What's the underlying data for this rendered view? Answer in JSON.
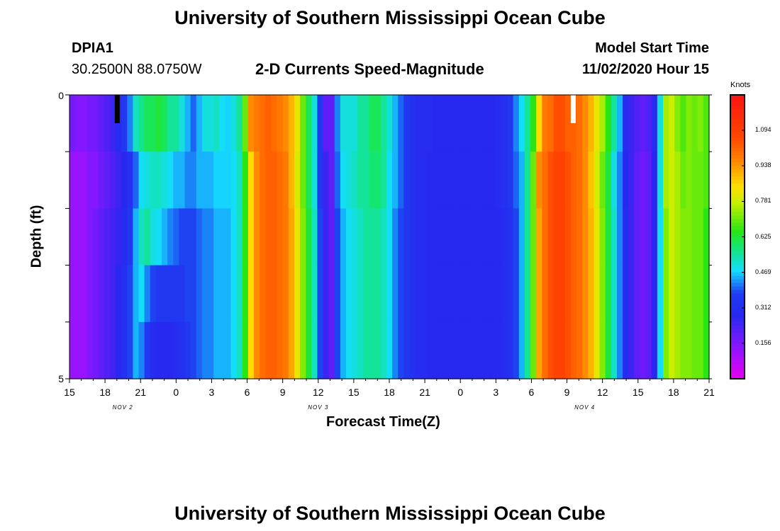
{
  "header": {
    "title": "University of Southern Mississippi Ocean Cube",
    "station_id": "DPIA1",
    "coords": "30.2500N 88.0750W",
    "subtitle": "2-D Currents Speed-Magnitude",
    "model_label": "Model Start Time",
    "model_time": "11/02/2020 Hour 15"
  },
  "footer": {
    "title": "University of Southern Mississippi Ocean Cube"
  },
  "chart_data": {
    "type": "heatmap",
    "title": "2-D Currents Speed-Magnitude",
    "xlabel": "Forecast Time(Z)",
    "ylabel": "Depth (ft)",
    "x_ticks": [
      "15",
      "18",
      "21",
      "0",
      "3",
      "6",
      "9",
      "12",
      "15",
      "18",
      "21",
      "0",
      "3",
      "6",
      "9",
      "12",
      "15",
      "18",
      "21"
    ],
    "x_tick_hours": [
      0,
      3,
      6,
      9,
      12,
      15,
      18,
      21,
      24,
      27,
      30,
      33,
      36,
      39,
      42,
      45,
      48,
      51,
      54
    ],
    "day_labels": [
      {
        "label": "NOV 2",
        "hour": 4.5
      },
      {
        "label": "NOV 3",
        "hour": 21
      },
      {
        "label": "NOV 4",
        "hour": 43.5
      }
    ],
    "y_ticks": [
      "0",
      "5"
    ],
    "ylim": [
      0,
      5
    ],
    "xlim_hours": [
      0,
      54
    ],
    "depth_levels": 5,
    "hours_per_column": 1,
    "values": [
      [
        0.17,
        0.15,
        0.15,
        0.17,
        0.17,
        0.2,
        0.22,
        0.25,
        0.3,
        0.35,
        0.42,
        0.52,
        0.56,
        0.6,
        0.6,
        0.62,
        0.6,
        0.55,
        0.55,
        0.5,
        0.45,
        0.4,
        0.45,
        0.5,
        0.5,
        0.52,
        0.48,
        0.47,
        0.5,
        0.55,
        0.7,
        0.95,
        0.98,
        1.0,
        1.02,
        1.0,
        0.98,
        0.95,
        0.9,
        0.82,
        0.7,
        0.6,
        0.5,
        0.35,
        0.2,
        0.2,
        0.42,
        0.5,
        0.5,
        0.5,
        0.55,
        0.55,
        0.6,
        0.6,
        0.55,
        0.5,
        0.45,
        0.4,
        0.35,
        0.32,
        0.3,
        0.3,
        0.3,
        0.28,
        0.28,
        0.28,
        0.28,
        0.28,
        0.28,
        0.28,
        0.28,
        0.28,
        0.28,
        0.28,
        0.3,
        0.32,
        0.35,
        0.42,
        0.48,
        0.55,
        0.65,
        0.85,
        0.98,
        1.0,
        1.05,
        1.05,
        1.02,
        1.02,
        1.0,
        0.95,
        0.9,
        0.82,
        0.75,
        0.65,
        0.55,
        0.45,
        0.3,
        0.25,
        0.22,
        0.2,
        0.22,
        0.3,
        0.5,
        0.75,
        0.78,
        0.72,
        0.68,
        0.72,
        0.7,
        0.72,
        0.68
      ],
      [
        0.12,
        0.12,
        0.12,
        0.15,
        0.15,
        0.18,
        0.2,
        0.22,
        0.25,
        0.28,
        0.32,
        0.4,
        0.48,
        0.5,
        0.52,
        0.52,
        0.5,
        0.48,
        0.45,
        0.45,
        0.42,
        0.42,
        0.45,
        0.45,
        0.45,
        0.47,
        0.47,
        0.47,
        0.48,
        0.52,
        0.65,
        0.85,
        0.95,
        1.0,
        1.02,
        1.02,
        1.0,
        0.98,
        0.9,
        0.8,
        0.7,
        0.6,
        0.5,
        0.35,
        0.25,
        0.2,
        0.4,
        0.48,
        0.5,
        0.52,
        0.55,
        0.55,
        0.58,
        0.58,
        0.55,
        0.48,
        0.45,
        0.4,
        0.35,
        0.32,
        0.3,
        0.3,
        0.28,
        0.28,
        0.28,
        0.28,
        0.28,
        0.28,
        0.28,
        0.28,
        0.28,
        0.28,
        0.28,
        0.28,
        0.3,
        0.32,
        0.35,
        0.4,
        0.45,
        0.55,
        0.7,
        0.95,
        1.0,
        1.05,
        1.08,
        1.08,
        1.05,
        1.02,
        1.0,
        0.95,
        0.88,
        0.8,
        0.7,
        0.62,
        0.5,
        0.42,
        0.28,
        0.25,
        0.2,
        0.18,
        0.2,
        0.28,
        0.5,
        0.75,
        0.78,
        0.75,
        0.7,
        0.72,
        0.7,
        0.7,
        0.68
      ],
      [
        0.12,
        0.12,
        0.12,
        0.15,
        0.17,
        0.2,
        0.22,
        0.24,
        0.26,
        0.3,
        0.35,
        0.45,
        0.52,
        0.55,
        0.5,
        0.48,
        0.45,
        0.42,
        0.4,
        0.38,
        0.38,
        0.38,
        0.4,
        0.42,
        0.42,
        0.45,
        0.45,
        0.45,
        0.48,
        0.52,
        0.65,
        0.85,
        0.95,
        1.0,
        1.02,
        1.02,
        1.0,
        0.98,
        0.92,
        0.82,
        0.72,
        0.62,
        0.52,
        0.38,
        0.25,
        0.2,
        0.38,
        0.45,
        0.48,
        0.5,
        0.52,
        0.55,
        0.55,
        0.55,
        0.52,
        0.48,
        0.42,
        0.38,
        0.35,
        0.32,
        0.3,
        0.3,
        0.28,
        0.28,
        0.28,
        0.28,
        0.28,
        0.28,
        0.28,
        0.28,
        0.28,
        0.28,
        0.28,
        0.28,
        0.28,
        0.3,
        0.32,
        0.38,
        0.45,
        0.55,
        0.7,
        0.92,
        1.0,
        1.05,
        1.08,
        1.08,
        1.05,
        1.02,
        1.0,
        0.95,
        0.9,
        0.82,
        0.72,
        0.62,
        0.52,
        0.42,
        0.3,
        0.25,
        0.2,
        0.18,
        0.2,
        0.28,
        0.48,
        0.72,
        0.78,
        0.75,
        0.72,
        0.72,
        0.7,
        0.7,
        0.65
      ],
      [
        0.12,
        0.12,
        0.12,
        0.15,
        0.17,
        0.2,
        0.22,
        0.24,
        0.28,
        0.32,
        0.38,
        0.45,
        0.48,
        0.42,
        0.38,
        0.36,
        0.35,
        0.35,
        0.35,
        0.35,
        0.38,
        0.38,
        0.4,
        0.42,
        0.42,
        0.45,
        0.45,
        0.45,
        0.48,
        0.52,
        0.65,
        0.85,
        0.95,
        1.0,
        1.02,
        1.02,
        1.0,
        0.98,
        0.92,
        0.82,
        0.72,
        0.62,
        0.52,
        0.38,
        0.25,
        0.2,
        0.38,
        0.45,
        0.48,
        0.5,
        0.52,
        0.55,
        0.55,
        0.55,
        0.52,
        0.48,
        0.42,
        0.38,
        0.35,
        0.32,
        0.3,
        0.3,
        0.28,
        0.28,
        0.28,
        0.28,
        0.28,
        0.28,
        0.28,
        0.28,
        0.28,
        0.28,
        0.28,
        0.28,
        0.28,
        0.3,
        0.32,
        0.38,
        0.45,
        0.55,
        0.7,
        0.92,
        1.0,
        1.05,
        1.08,
        1.08,
        1.05,
        1.02,
        1.0,
        0.95,
        0.9,
        0.82,
        0.72,
        0.62,
        0.52,
        0.42,
        0.3,
        0.25,
        0.2,
        0.18,
        0.2,
        0.28,
        0.48,
        0.72,
        0.78,
        0.75,
        0.72,
        0.72,
        0.7,
        0.7,
        0.65
      ],
      [
        0.12,
        0.12,
        0.12,
        0.15,
        0.17,
        0.2,
        0.22,
        0.24,
        0.28,
        0.32,
        0.38,
        0.45,
        0.42,
        0.35,
        0.3,
        0.28,
        0.28,
        0.28,
        0.3,
        0.32,
        0.35,
        0.38,
        0.4,
        0.42,
        0.42,
        0.45,
        0.45,
        0.45,
        0.48,
        0.52,
        0.65,
        0.85,
        0.95,
        1.0,
        1.02,
        1.02,
        1.0,
        0.98,
        0.92,
        0.82,
        0.72,
        0.62,
        0.52,
        0.38,
        0.25,
        0.2,
        0.38,
        0.45,
        0.48,
        0.5,
        0.52,
        0.55,
        0.55,
        0.55,
        0.52,
        0.48,
        0.42,
        0.38,
        0.35,
        0.32,
        0.3,
        0.3,
        0.28,
        0.28,
        0.28,
        0.28,
        0.28,
        0.28,
        0.28,
        0.28,
        0.28,
        0.28,
        0.28,
        0.28,
        0.28,
        0.3,
        0.32,
        0.38,
        0.45,
        0.55,
        0.7,
        0.92,
        1.0,
        1.05,
        1.08,
        1.08,
        1.05,
        1.02,
        1.0,
        0.95,
        0.9,
        0.82,
        0.72,
        0.62,
        0.52,
        0.42,
        0.3,
        0.25,
        0.2,
        0.18,
        0.2,
        0.28,
        0.48,
        0.72,
        0.78,
        0.75,
        0.72,
        0.72,
        0.7,
        0.7,
        0.65
      ]
    ],
    "markers": [
      {
        "hour": 4.0,
        "color": "#000000"
      },
      {
        "hour": 42.5,
        "color": "#ffffff"
      }
    ],
    "colorbar": {
      "label": "Knots",
      "min": 0.0,
      "max": 1.25,
      "ticks": [
        "1.094",
        "0.938",
        "0.781",
        "0.625",
        "0.469",
        "0.312",
        "0.156"
      ],
      "tick_values": [
        1.094,
        0.938,
        0.781,
        0.625,
        0.469,
        0.312,
        0.156
      ]
    }
  }
}
